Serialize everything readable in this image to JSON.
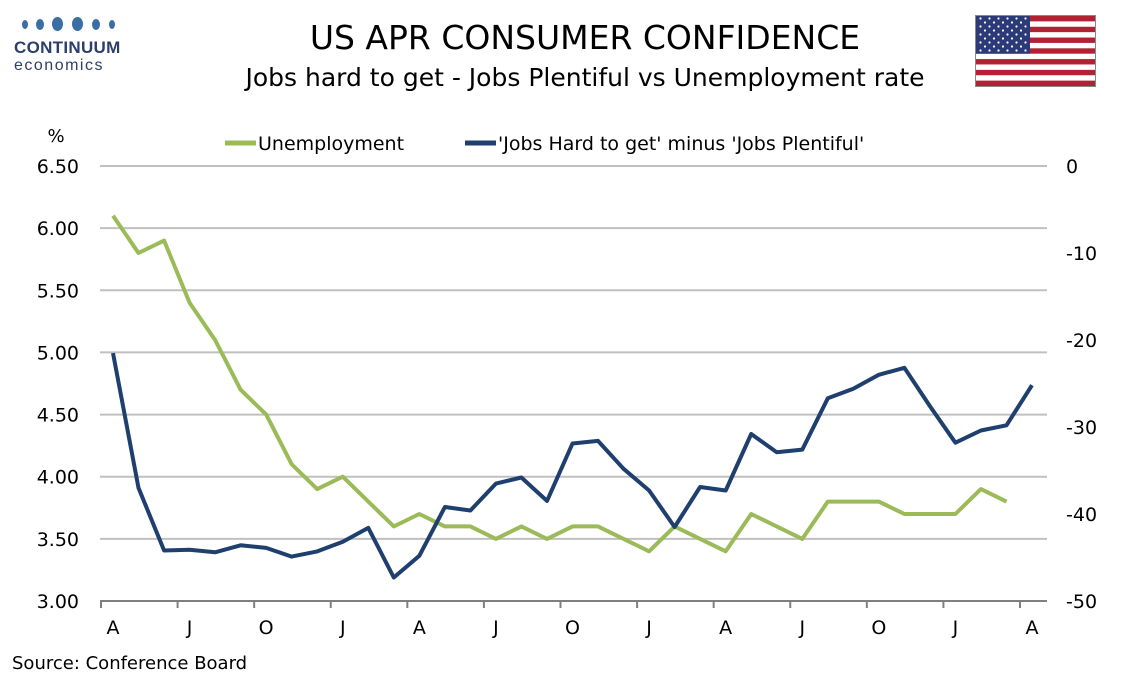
{
  "logo": {
    "name": "CONTINUUM",
    "sub": "economics"
  },
  "title": "US APR CONSUMER CONFIDENCE",
  "subtitle": "Jobs hard to get - Jobs Plentiful vs Unemployment rate",
  "source": "Source: Conference Board",
  "colors": {
    "unemployment": "#9bbb59",
    "jobs_diff": "#1f3f6e",
    "grid": "#c0c0c0",
    "axis": "#7f7f7f"
  },
  "chart_data": {
    "type": "line",
    "left_axis_unit": "%",
    "left_ylim": [
      3.0,
      6.5
    ],
    "right_ylim": [
      -50,
      0
    ],
    "left_ticks": [
      "6.50",
      "6.00",
      "5.50",
      "5.00",
      "4.50",
      "4.00",
      "3.50",
      "3.00"
    ],
    "right_ticks": [
      "0",
      "-10",
      "-20",
      "-30",
      "-40",
      "-50"
    ],
    "x_tick_labels": [
      "A",
      "J",
      "O",
      "J",
      "A",
      "J",
      "O",
      "J",
      "A",
      "J",
      "O",
      "J",
      "A"
    ],
    "x_start": "Apr 2020",
    "x_end": "Apr 2023",
    "grid": true,
    "legend_position": "top",
    "series": [
      {
        "name": "Unemployment",
        "axis": "left",
        "values": [
          6.1,
          5.8,
          5.9,
          5.4,
          5.1,
          4.7,
          4.5,
          4.1,
          3.9,
          4.0,
          3.8,
          3.6,
          3.7,
          3.6,
          3.6,
          3.5,
          3.6,
          3.5,
          3.6,
          3.6,
          3.5,
          3.4,
          3.6,
          3.5,
          3.4,
          3.7,
          3.6,
          3.5,
          3.8,
          3.8,
          3.8,
          3.7,
          3.7,
          3.7,
          3.9,
          3.8
        ]
      },
      {
        "name": "'Jobs Hard to get' minus 'Jobs Plentiful'",
        "axis": "right",
        "values": [
          -21.5,
          -37.0,
          -44.2,
          -44.1,
          -44.4,
          -43.6,
          -43.9,
          -44.9,
          -44.3,
          -43.2,
          -41.6,
          -47.3,
          -44.8,
          -39.2,
          -39.6,
          -36.5,
          -35.8,
          -38.5,
          -31.9,
          -31.6,
          -34.8,
          -37.3,
          -41.5,
          -36.9,
          -37.3,
          -30.8,
          -32.9,
          -32.6,
          -26.7,
          -25.6,
          -24.0,
          -23.2,
          -27.6,
          -31.8,
          -30.4,
          -29.8,
          -25.2
        ]
      }
    ]
  }
}
